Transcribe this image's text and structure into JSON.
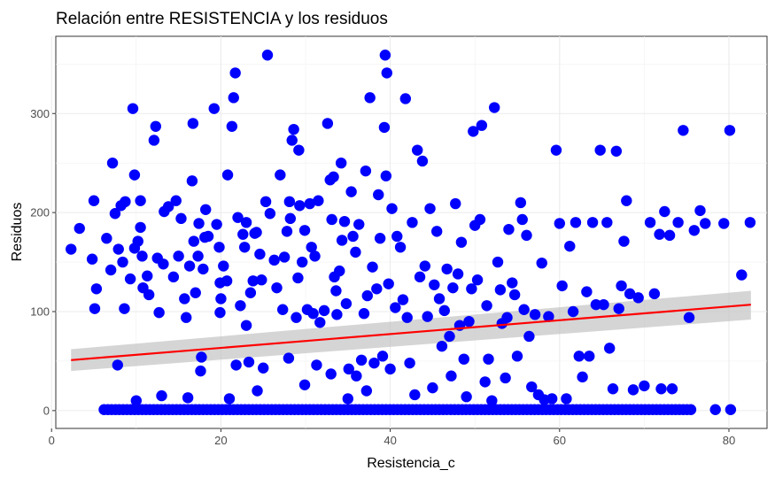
{
  "chart_data": {
    "type": "scatter",
    "title": "Relación entre RESISTENCIA y los residuos",
    "xlabel": "Resistencia_c",
    "ylabel": "Residuos",
    "xlim": [
      0.5,
      84.5
    ],
    "ylim": [
      -18,
      378
    ],
    "x_ticks": [
      0,
      20,
      40,
      60,
      80
    ],
    "y_ticks": [
      0,
      100,
      200,
      300
    ],
    "grid": true,
    "point_color": "#0000FF",
    "trend": {
      "method": "linear fit with confidence band",
      "color": "#FF0000",
      "band_color": "#BEBEBE",
      "x": [
        2.3,
        82.6
      ],
      "y": [
        51,
        107
      ],
      "band_lower": [
        40,
        92
      ],
      "band_upper": [
        62,
        121
      ]
    },
    "points": [
      [
        2.3,
        163
      ],
      [
        3.3,
        184
      ],
      [
        4.8,
        153
      ],
      [
        5.0,
        212
      ],
      [
        5.1,
        103
      ],
      [
        5.3,
        123
      ],
      [
        6.5,
        174
      ],
      [
        7.0,
        142
      ],
      [
        7.2,
        250
      ],
      [
        7.5,
        199
      ],
      [
        7.8,
        46
      ],
      [
        7.9,
        163
      ],
      [
        8.2,
        207
      ],
      [
        8.4,
        150
      ],
      [
        8.6,
        103
      ],
      [
        8.7,
        211
      ],
      [
        9.3,
        133
      ],
      [
        9.6,
        305
      ],
      [
        9.8,
        238
      ],
      [
        9.8,
        164
      ],
      [
        10.0,
        10
      ],
      [
        10.2,
        171
      ],
      [
        10.5,
        212
      ],
      [
        10.5,
        185
      ],
      [
        10.7,
        156
      ],
      [
        10.8,
        124
      ],
      [
        11.3,
        136
      ],
      [
        11.5,
        117
      ],
      [
        12.1,
        273
      ],
      [
        12.3,
        287
      ],
      [
        12.5,
        154
      ],
      [
        12.7,
        99
      ],
      [
        13.0,
        15
      ],
      [
        13.2,
        148
      ],
      [
        13.3,
        201
      ],
      [
        13.8,
        206
      ],
      [
        14.4,
        135
      ],
      [
        14.7,
        212
      ],
      [
        15.0,
        156
      ],
      [
        15.3,
        194
      ],
      [
        15.7,
        113
      ],
      [
        15.9,
        94
      ],
      [
        16.1,
        13
      ],
      [
        16.3,
        146
      ],
      [
        16.6,
        232
      ],
      [
        16.7,
        290
      ],
      [
        16.8,
        171
      ],
      [
        17.0,
        119
      ],
      [
        17.3,
        156
      ],
      [
        17.4,
        189
      ],
      [
        17.6,
        40
      ],
      [
        17.7,
        54
      ],
      [
        17.9,
        143
      ],
      [
        18.1,
        175
      ],
      [
        18.2,
        203
      ],
      [
        18.5,
        176
      ],
      [
        19.2,
        305
      ],
      [
        19.5,
        188
      ],
      [
        19.8,
        165
      ],
      [
        19.9,
        129
      ],
      [
        19.9,
        99
      ],
      [
        20.0,
        113
      ],
      [
        20.3,
        146
      ],
      [
        20.7,
        131
      ],
      [
        20.8,
        238
      ],
      [
        21.0,
        12
      ],
      [
        21.3,
        287
      ],
      [
        21.5,
        316
      ],
      [
        21.7,
        341
      ],
      [
        21.8,
        46
      ],
      [
        22.0,
        195
      ],
      [
        22.3,
        106
      ],
      [
        22.6,
        178
      ],
      [
        22.8,
        165
      ],
      [
        23.0,
        86
      ],
      [
        23.0,
        190
      ],
      [
        23.3,
        49
      ],
      [
        23.5,
        119
      ],
      [
        23.8,
        131
      ],
      [
        24.0,
        179
      ],
      [
        24.2,
        180
      ],
      [
        24.3,
        20
      ],
      [
        24.6,
        158
      ],
      [
        24.8,
        132
      ],
      [
        25.0,
        43
      ],
      [
        25.3,
        211
      ],
      [
        25.5,
        359
      ],
      [
        25.8,
        199
      ],
      [
        26.3,
        152
      ],
      [
        26.6,
        124
      ],
      [
        27.0,
        238
      ],
      [
        27.3,
        102
      ],
      [
        27.5,
        155
      ],
      [
        27.8,
        181
      ],
      [
        28.0,
        53
      ],
      [
        28.1,
        211
      ],
      [
        28.2,
        194
      ],
      [
        28.4,
        273
      ],
      [
        28.6,
        284
      ],
      [
        28.9,
        94
      ],
      [
        29.1,
        134
      ],
      [
        29.2,
        263
      ],
      [
        29.3,
        207
      ],
      [
        29.6,
        150
      ],
      [
        29.9,
        26
      ],
      [
        29.9,
        182
      ],
      [
        30.2,
        102
      ],
      [
        30.5,
        209
      ],
      [
        30.7,
        165
      ],
      [
        30.9,
        98
      ],
      [
        31.1,
        156
      ],
      [
        31.3,
        46
      ],
      [
        31.5,
        212
      ],
      [
        31.7,
        89
      ],
      [
        32.2,
        101
      ],
      [
        32.6,
        290
      ],
      [
        32.9,
        233
      ],
      [
        33.0,
        37
      ],
      [
        33.1,
        193
      ],
      [
        33.3,
        236
      ],
      [
        33.4,
        135
      ],
      [
        33.6,
        121
      ],
      [
        33.7,
        97
      ],
      [
        34.0,
        141
      ],
      [
        34.2,
        250
      ],
      [
        34.3,
        172
      ],
      [
        34.6,
        191
      ],
      [
        34.8,
        108
      ],
      [
        35.0,
        12
      ],
      [
        35.1,
        42
      ],
      [
        35.4,
        221
      ],
      [
        35.6,
        176
      ],
      [
        35.9,
        160
      ],
      [
        36.0,
        35
      ],
      [
        36.3,
        188
      ],
      [
        36.6,
        51
      ],
      [
        36.9,
        98
      ],
      [
        37.1,
        242
      ],
      [
        37.2,
        20
      ],
      [
        37.3,
        116
      ],
      [
        37.6,
        316
      ],
      [
        37.9,
        145
      ],
      [
        38.1,
        48
      ],
      [
        38.4,
        123
      ],
      [
        38.6,
        218
      ],
      [
        38.8,
        174
      ],
      [
        39.1,
        55
      ],
      [
        39.3,
        286
      ],
      [
        39.4,
        359
      ],
      [
        39.5,
        237
      ],
      [
        39.6,
        341
      ],
      [
        39.8,
        128
      ],
      [
        40.0,
        42
      ],
      [
        40.2,
        204
      ],
      [
        40.6,
        104
      ],
      [
        40.8,
        176
      ],
      [
        41.2,
        165
      ],
      [
        41.5,
        112
      ],
      [
        41.8,
        315
      ],
      [
        42.0,
        94
      ],
      [
        42.3,
        48
      ],
      [
        42.6,
        190
      ],
      [
        42.9,
        16
      ],
      [
        43.2,
        263
      ],
      [
        43.5,
        135
      ],
      [
        43.8,
        252
      ],
      [
        44.1,
        146
      ],
      [
        44.4,
        95
      ],
      [
        44.7,
        204
      ],
      [
        45.0,
        23
      ],
      [
        45.2,
        127
      ],
      [
        45.5,
        181
      ],
      [
        45.8,
        113
      ],
      [
        46.1,
        65
      ],
      [
        46.4,
        101
      ],
      [
        46.7,
        143
      ],
      [
        47.0,
        75
      ],
      [
        47.2,
        35
      ],
      [
        47.4,
        124
      ],
      [
        47.7,
        209
      ],
      [
        48.0,
        138
      ],
      [
        48.2,
        86
      ],
      [
        48.4,
        170
      ],
      [
        48.7,
        52
      ],
      [
        49.0,
        14
      ],
      [
        49.3,
        90
      ],
      [
        49.6,
        123
      ],
      [
        49.8,
        282
      ],
      [
        50.0,
        187
      ],
      [
        50.3,
        132
      ],
      [
        50.6,
        193
      ],
      [
        50.8,
        288
      ],
      [
        51.2,
        29
      ],
      [
        51.4,
        106
      ],
      [
        51.6,
        52
      ],
      [
        52.0,
        10
      ],
      [
        52.3,
        306
      ],
      [
        52.7,
        150
      ],
      [
        53.0,
        122
      ],
      [
        53.2,
        88
      ],
      [
        53.6,
        33
      ],
      [
        53.8,
        94
      ],
      [
        54.0,
        183
      ],
      [
        54.4,
        129
      ],
      [
        54.7,
        117
      ],
      [
        55.0,
        55
      ],
      [
        55.4,
        210
      ],
      [
        55.6,
        193
      ],
      [
        55.8,
        102
      ],
      [
        56.1,
        177
      ],
      [
        56.4,
        75
      ],
      [
        56.7,
        24
      ],
      [
        57.1,
        97
      ],
      [
        57.5,
        16
      ],
      [
        57.9,
        149
      ],
      [
        58.2,
        11
      ],
      [
        58.7,
        95
      ],
      [
        59.1,
        12
      ],
      [
        59.6,
        263
      ],
      [
        60.0,
        189
      ],
      [
        60.3,
        126
      ],
      [
        60.8,
        12
      ],
      [
        61.2,
        166
      ],
      [
        61.6,
        100
      ],
      [
        61.9,
        190
      ],
      [
        62.3,
        55
      ],
      [
        62.7,
        34
      ],
      [
        63.2,
        120
      ],
      [
        63.5,
        55
      ],
      [
        63.9,
        190
      ],
      [
        64.3,
        107
      ],
      [
        64.8,
        263
      ],
      [
        65.2,
        107
      ],
      [
        65.6,
        190
      ],
      [
        65.9,
        63
      ],
      [
        66.3,
        22
      ],
      [
        66.7,
        262
      ],
      [
        67.0,
        103
      ],
      [
        67.3,
        126
      ],
      [
        67.6,
        171
      ],
      [
        67.9,
        212
      ],
      [
        68.3,
        118
      ],
      [
        68.7,
        21
      ],
      [
        69.3,
        114
      ],
      [
        70.0,
        25
      ],
      [
        70.7,
        190
      ],
      [
        71.2,
        118
      ],
      [
        71.8,
        178
      ],
      [
        72.0,
        22
      ],
      [
        72.4,
        201
      ],
      [
        73.0,
        177
      ],
      [
        73.3,
        22
      ],
      [
        74.0,
        190
      ],
      [
        74.6,
        283
      ],
      [
        75.3,
        94
      ],
      [
        75.9,
        182
      ],
      [
        76.6,
        202
      ],
      [
        77.2,
        189
      ],
      [
        78.4,
        1
      ],
      [
        79.4,
        189
      ],
      [
        80.1,
        283
      ],
      [
        80.2,
        1
      ],
      [
        81.5,
        137
      ],
      [
        82.5,
        190
      ]
    ],
    "zero_band": {
      "y": 1,
      "x_from": 6.2,
      "x_to": 75.6
    }
  }
}
